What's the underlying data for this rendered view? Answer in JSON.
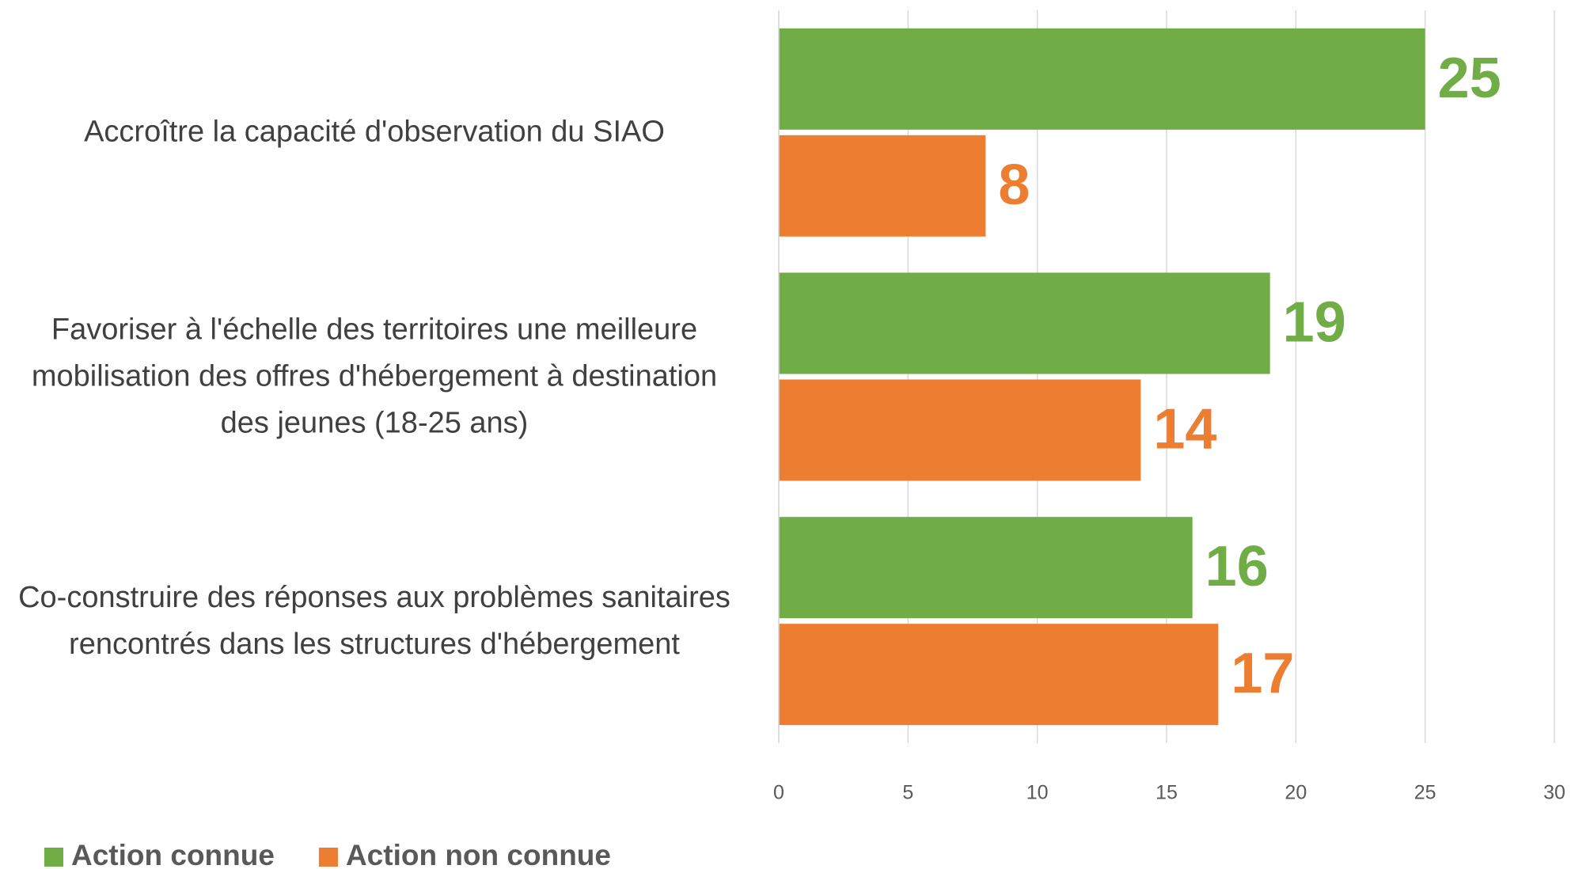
{
  "chart_data": {
    "type": "barh",
    "categories": [
      "Accroître la capacité d'observation du SIAO",
      "Favoriser à l'échelle des territoires une meilleure mobilisation des offres d'hébergement à destination des jeunes (18-25 ans)",
      "Co-construire des réponses aux problèmes sanitaires rencontrés dans les structures d'hébergement"
    ],
    "series": [
      {
        "name": "Action connue",
        "color": "#70ad47",
        "values": [
          25,
          19,
          16
        ]
      },
      {
        "name": "Action non connue",
        "color": "#ed7d31",
        "values": [
          8,
          14,
          17
        ]
      }
    ],
    "xlim": [
      0,
      30
    ],
    "xticks": [
      0,
      5,
      10,
      15,
      20,
      25,
      30
    ],
    "grid": true,
    "legend": "bottom-left"
  }
}
